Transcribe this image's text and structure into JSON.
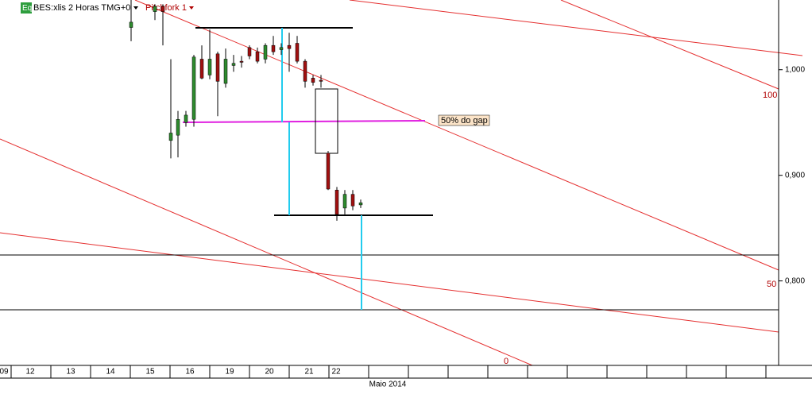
{
  "chart_data": {
    "type": "candlestick",
    "title": "BES:xlis 2 Horas TMG+0",
    "badge": "Eq",
    "tool": "Pitchfork 1",
    "annotation": "50% do gap",
    "pitchfork_labels": [
      "100",
      "50",
      "0"
    ],
    "x_title": "Maio 2014",
    "x_labels": [
      "09",
      "12",
      "13",
      "14",
      "15",
      "16",
      "19",
      "20",
      "21",
      "22"
    ],
    "ylim": [
      0.72,
      1.066
    ],
    "yticks": [
      {
        "value": 1.0,
        "label": "1,000"
      },
      {
        "value": 0.9,
        "label": "0,900"
      },
      {
        "value": 0.8,
        "label": "0,800"
      }
    ],
    "up_color": "#2e8b2e",
    "down_color": "#a01010",
    "open": [
      1.04,
      1.055,
      1.06,
      0.933,
      0.938,
      0.95,
      0.953,
      1.01,
      0.995,
      1.015,
      0.987,
      1.004,
      1.008,
      1.021,
      1.017,
      1.01,
      1.023,
      1.019,
      1.023,
      1.025,
      1.008,
      0.992,
      0.99,
      0.921,
      0.886,
      0.869,
      0.882,
      0.872
    ],
    "high": [
      1.066,
      1.062,
      1.062,
      1.01,
      0.961,
      0.961,
      1.014,
      1.023,
      1.038,
      1.017,
      1.02,
      1.014,
      1.013,
      1.023,
      1.021,
      1.025,
      1.032,
      1.025,
      1.035,
      1.032,
      1.01,
      0.995,
      0.995,
      0.923,
      0.889,
      0.886,
      0.886,
      0.877
    ],
    "low": [
      1.027,
      1.047,
      1.023,
      0.916,
      0.917,
      0.946,
      0.946,
      0.991,
      0.991,
      0.956,
      0.983,
      0.998,
      1.002,
      1.01,
      1.006,
      1.006,
      1.014,
      1.014,
      0.998,
      1.006,
      0.983,
      0.985,
      0.983,
      0.886,
      0.857,
      0.863,
      0.867,
      0.869
    ],
    "close": [
      1.045,
      1.06,
      1.055,
      0.94,
      0.953,
      0.957,
      1.012,
      0.992,
      1.01,
      0.989,
      1.01,
      1.006,
      1.007,
      1.013,
      1.008,
      1.023,
      1.017,
      1.021,
      1.02,
      1.008,
      0.989,
      0.988,
      0.989,
      0.887,
      0.863,
      0.882,
      0.871,
      0.874
    ]
  }
}
